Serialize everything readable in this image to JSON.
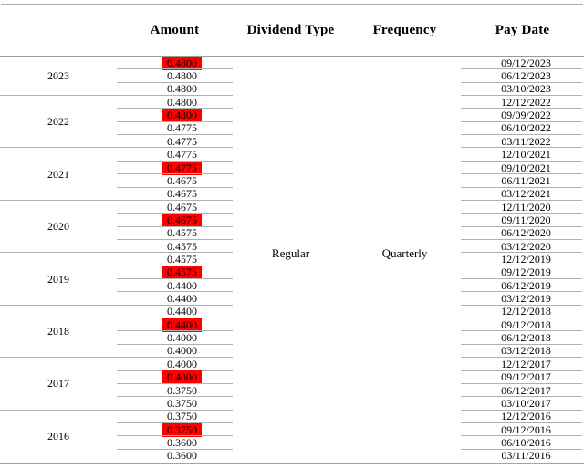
{
  "table": {
    "headers": {
      "amount": "Amount",
      "dividend_type": "Dividend Type",
      "frequency": "Frequency",
      "pay_date": "Pay Date"
    },
    "merged": {
      "dividend_type": "Regular",
      "frequency": "Quarterly"
    },
    "colors": {
      "highlight": "#ff0000",
      "row_line": "#b0b0b0",
      "border": "#ababab"
    },
    "groups": [
      {
        "year": "2023",
        "rows": [
          {
            "amount": "0.4800",
            "pay_date": "09/12/2023",
            "highlight": true
          },
          {
            "amount": "0.4800",
            "pay_date": "06/12/2023",
            "highlight": false
          },
          {
            "amount": "0.4800",
            "pay_date": "03/10/2023",
            "highlight": false
          }
        ]
      },
      {
        "year": "2022",
        "rows": [
          {
            "amount": "0.4800",
            "pay_date": "12/12/2022",
            "highlight": false
          },
          {
            "amount": "0.4800",
            "pay_date": "09/09/2022",
            "highlight": true
          },
          {
            "amount": "0.4775",
            "pay_date": "06/10/2022",
            "highlight": false
          },
          {
            "amount": "0.4775",
            "pay_date": "03/11/2022",
            "highlight": false
          }
        ]
      },
      {
        "year": "2021",
        "rows": [
          {
            "amount": "0.4775",
            "pay_date": "12/10/2021",
            "highlight": false
          },
          {
            "amount": "0.4775",
            "pay_date": "09/10/2021",
            "highlight": true
          },
          {
            "amount": "0.4675",
            "pay_date": "06/11/2021",
            "highlight": false
          },
          {
            "amount": "0.4675",
            "pay_date": "03/12/2021",
            "highlight": false
          }
        ]
      },
      {
        "year": "2020",
        "rows": [
          {
            "amount": "0.4675",
            "pay_date": "12/11/2020",
            "highlight": false
          },
          {
            "amount": "0.4675",
            "pay_date": "09/11/2020",
            "highlight": true
          },
          {
            "amount": "0.4575",
            "pay_date": "06/12/2020",
            "highlight": false
          },
          {
            "amount": "0.4575",
            "pay_date": "03/12/2020",
            "highlight": false
          }
        ]
      },
      {
        "year": "2019",
        "rows": [
          {
            "amount": "0.4575",
            "pay_date": "12/12/2019",
            "highlight": false
          },
          {
            "amount": "0.4575",
            "pay_date": "09/12/2019",
            "highlight": true
          },
          {
            "amount": "0.4400",
            "pay_date": "06/12/2019",
            "highlight": false
          },
          {
            "amount": "0.4400",
            "pay_date": "03/12/2019",
            "highlight": false
          }
        ]
      },
      {
        "year": "2018",
        "rows": [
          {
            "amount": "0.4400",
            "pay_date": "12/12/2018",
            "highlight": false
          },
          {
            "amount": "0.4400",
            "pay_date": "09/12/2018",
            "highlight": true
          },
          {
            "amount": "0.4000",
            "pay_date": "06/12/2018",
            "highlight": false
          },
          {
            "amount": "0.4000",
            "pay_date": "03/12/2018",
            "highlight": false
          }
        ]
      },
      {
        "year": "2017",
        "rows": [
          {
            "amount": "0.4000",
            "pay_date": "12/12/2017",
            "highlight": false
          },
          {
            "amount": "0.4000",
            "pay_date": "09/12/2017",
            "highlight": true
          },
          {
            "amount": "0.3750",
            "pay_date": "06/12/2017",
            "highlight": false
          },
          {
            "amount": "0.3750",
            "pay_date": "03/10/2017",
            "highlight": false
          }
        ]
      },
      {
        "year": "2016",
        "rows": [
          {
            "amount": "0.3750",
            "pay_date": "12/12/2016",
            "highlight": false
          },
          {
            "amount": "0.3750",
            "pay_date": "09/12/2016",
            "highlight": true
          },
          {
            "amount": "0.3600",
            "pay_date": "06/10/2016",
            "highlight": false
          },
          {
            "amount": "0.3600",
            "pay_date": "03/11/2016",
            "highlight": false
          }
        ]
      }
    ]
  }
}
